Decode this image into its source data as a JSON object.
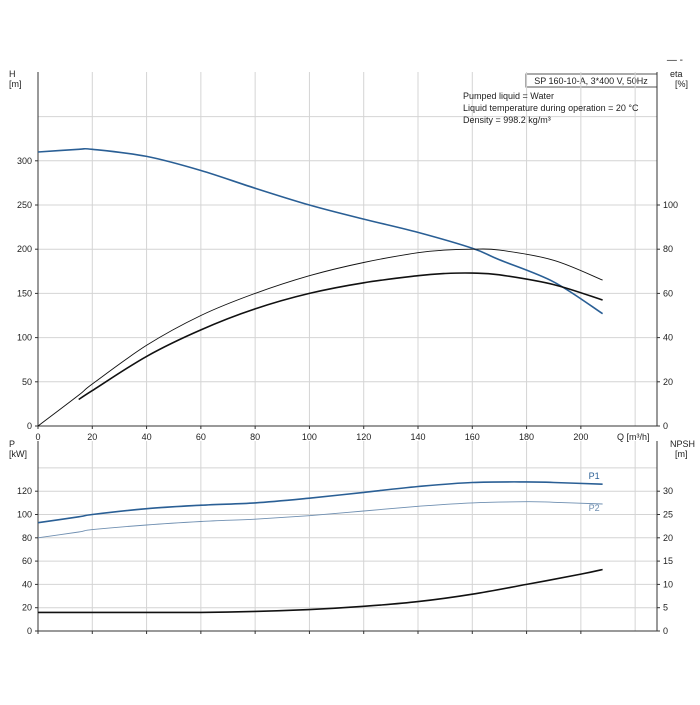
{
  "legend_title": "SP 160-10-A, 3*400 V, 50Hz",
  "corner_mark": "— -",
  "info_lines": [
    "Pumped liquid = Water",
    "Liquid temperature during operation = 20 °C",
    "Density = 998.2 kg/m³"
  ],
  "chart_data": [
    {
      "type": "line",
      "panel": "top",
      "x_label": "Q [m³/h]",
      "xlim": [
        0,
        230
      ],
      "x_ticks": [
        0,
        20,
        40,
        60,
        80,
        100,
        120,
        140,
        160,
        180,
        200
      ],
      "left_axis": {
        "label": "H",
        "unit": "[m]",
        "ylim": [
          0,
          350
        ],
        "ticks": [
          0,
          50,
          100,
          150,
          200,
          250,
          300
        ]
      },
      "right_axis": {
        "label": "eta",
        "unit": "[%]",
        "ylim": [
          0,
          140
        ],
        "ticks": [
          0,
          20,
          40,
          60,
          80,
          100
        ]
      },
      "grid": true,
      "series": [
        {
          "axis": "left",
          "color": "#2a5f95",
          "width": 1.6,
          "x": [
            0,
            15,
            20,
            40,
            60,
            80,
            100,
            120,
            140,
            160,
            170,
            190,
            208
          ],
          "y": [
            310,
            313,
            313,
            305,
            289,
            269,
            250,
            234,
            219,
            201,
            188,
            163,
            127
          ]
        },
        {
          "axis": "right",
          "color": "#111111",
          "width": 1.6,
          "x": [
            15,
            20,
            40,
            60,
            80,
            100,
            120,
            140,
            150,
            160,
            170,
            190,
            208
          ],
          "y": [
            12,
            16,
            31.5,
            43.5,
            53,
            60,
            64.8,
            68,
            69,
            69.2,
            68.4,
            64,
            57
          ]
        },
        {
          "axis": "right",
          "color": "#111111",
          "width": 0.9,
          "x": [
            0,
            15,
            20,
            40,
            60,
            80,
            100,
            120,
            140,
            150,
            160,
            170,
            190,
            208
          ],
          "y": [
            0,
            14,
            19,
            36.5,
            50,
            60,
            68,
            74,
            78.4,
            79.6,
            80,
            79.6,
            75,
            66
          ]
        }
      ]
    },
    {
      "type": "line",
      "panel": "bottom",
      "xlim": [
        0,
        230
      ],
      "x_ticks": [
        0,
        20,
        40,
        60,
        80,
        100,
        120,
        140,
        160,
        180,
        200
      ],
      "left_axis": {
        "label": "P",
        "unit": "[kW]",
        "ylim": [
          0,
          140
        ],
        "ticks": [
          0,
          20,
          40,
          60,
          80,
          100,
          120
        ]
      },
      "right_axis": {
        "label": "NPSH",
        "unit": "[m]",
        "ylim": [
          0,
          35
        ],
        "ticks": [
          0,
          5,
          10,
          15,
          20,
          25,
          30
        ]
      },
      "grid": true,
      "series": [
        {
          "name": "P1",
          "axis": "left",
          "color": "#2a5f95",
          "width": 1.6,
          "x": [
            0,
            15,
            20,
            40,
            60,
            80,
            100,
            120,
            140,
            160,
            180,
            190,
            208
          ],
          "y": [
            93,
            98,
            100,
            105,
            108,
            110,
            114,
            119,
            124,
            127.5,
            128,
            127.5,
            126
          ]
        },
        {
          "name": "P2",
          "axis": "left",
          "color": "#6f8fb1",
          "width": 0.9,
          "x": [
            0,
            15,
            20,
            40,
            60,
            80,
            100,
            120,
            140,
            160,
            180,
            190,
            208
          ],
          "y": [
            80,
            85,
            87,
            91,
            94,
            96,
            99,
            103,
            107,
            110,
            111,
            110.5,
            109
          ]
        },
        {
          "axis": "right",
          "color": "#111111",
          "width": 1.6,
          "x": [
            0,
            15,
            20,
            40,
            60,
            80,
            100,
            120,
            140,
            160,
            180,
            200,
            208
          ],
          "y": [
            4,
            4,
            4,
            4,
            4,
            4.2,
            4.6,
            5.3,
            6.3,
            7.9,
            10,
            12.2,
            13.2
          ]
        }
      ]
    }
  ]
}
